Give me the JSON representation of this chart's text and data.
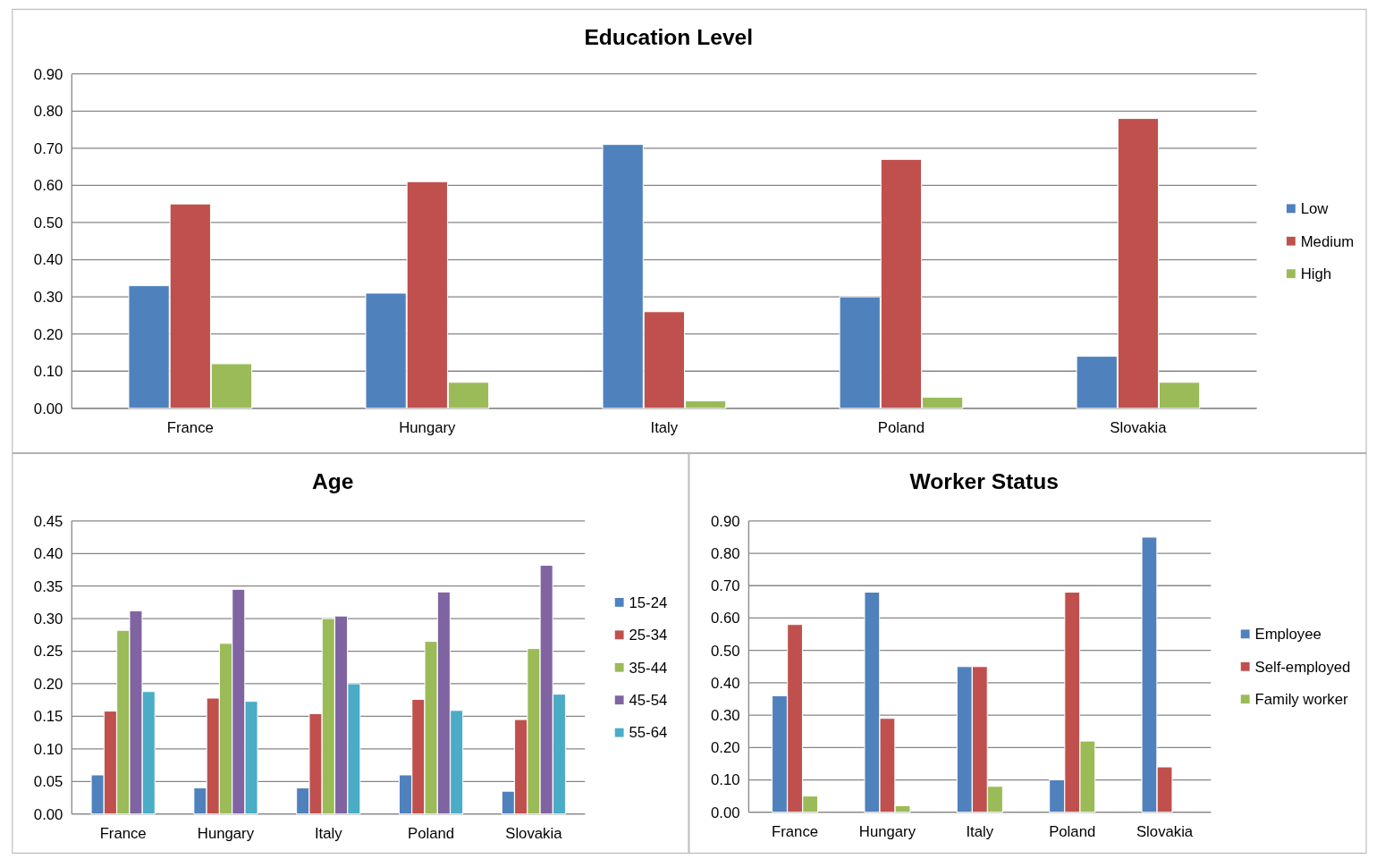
{
  "chart_data": [
    {
      "type": "bar",
      "title": "Education Level",
      "categories": [
        "France",
        "Hungary",
        "Italy",
        "Poland",
        "Slovakia"
      ],
      "series": [
        {
          "name": "Low",
          "color": "#4f81bd",
          "values": [
            0.33,
            0.31,
            0.71,
            0.3,
            0.14
          ]
        },
        {
          "name": "Medium",
          "color": "#c0504d",
          "values": [
            0.55,
            0.61,
            0.26,
            0.67,
            0.78
          ]
        },
        {
          "name": "High",
          "color": "#9bbb59",
          "values": [
            0.12,
            0.07,
            0.02,
            0.03,
            0.07
          ]
        }
      ],
      "ylim": [
        0,
        0.9
      ],
      "yticks": [
        {
          "value": 0,
          "label": "0.00"
        },
        {
          "value": 0.1,
          "label": "0.10"
        },
        {
          "value": 0.2,
          "label": "0.20"
        },
        {
          "value": 0.3,
          "label": "0.30"
        },
        {
          "value": 0.4,
          "label": "0.40"
        },
        {
          "value": 0.5,
          "label": "0.50"
        },
        {
          "value": 0.6,
          "label": "0.60"
        },
        {
          "value": 0.7,
          "label": "0.70"
        },
        {
          "value": 0.8,
          "label": "0.80"
        },
        {
          "value": 0.9,
          "label": "0.90"
        }
      ],
      "grid": "y",
      "legend": "right"
    },
    {
      "type": "bar",
      "title": "Age",
      "categories": [
        "France",
        "Hungary",
        "Italy",
        "Poland",
        "Slovakia"
      ],
      "series": [
        {
          "name": "15-24",
          "color": "#4f81bd",
          "values": [
            0.06,
            0.04,
            0.04,
            0.06,
            0.035
          ]
        },
        {
          "name": "25-34",
          "color": "#c0504d",
          "values": [
            0.158,
            0.178,
            0.154,
            0.176,
            0.145
          ]
        },
        {
          "name": "35-44",
          "color": "#9bbb59",
          "values": [
            0.282,
            0.262,
            0.3,
            0.265,
            0.254
          ]
        },
        {
          "name": "45-54",
          "color": "#8064a2",
          "values": [
            0.312,
            0.345,
            0.304,
            0.341,
            0.382
          ]
        },
        {
          "name": "55-64",
          "color": "#4bacc6",
          "values": [
            0.188,
            0.173,
            0.2,
            0.159,
            0.184
          ]
        }
      ],
      "ylim": [
        0,
        0.45
      ],
      "yticks": [
        {
          "value": 0,
          "label": "0.00"
        },
        {
          "value": 0.05,
          "label": "0.05"
        },
        {
          "value": 0.1,
          "label": "0.10"
        },
        {
          "value": 0.15,
          "label": "0.15"
        },
        {
          "value": 0.2,
          "label": "0.20"
        },
        {
          "value": 0.25,
          "label": "0.25"
        },
        {
          "value": 0.3,
          "label": "0.30"
        },
        {
          "value": 0.35,
          "label": "0.35"
        },
        {
          "value": 0.4,
          "label": "0.40"
        },
        {
          "value": 0.45,
          "label": "0.45"
        }
      ],
      "grid": "y",
      "legend": "right"
    },
    {
      "type": "bar",
      "title": "Worker Status",
      "categories": [
        "France",
        "Hungary",
        "Italy",
        "Poland",
        "Slovakia"
      ],
      "series": [
        {
          "name": "Employee",
          "color": "#4f81bd",
          "values": [
            0.36,
            0.68,
            0.45,
            0.1,
            0.85
          ]
        },
        {
          "name": "Self-employed",
          "color": "#c0504d",
          "values": [
            0.58,
            0.29,
            0.45,
            0.68,
            0.14
          ]
        },
        {
          "name": "Family worker",
          "color": "#9bbb59",
          "values": [
            0.05,
            0.02,
            0.08,
            0.22,
            0
          ]
        }
      ],
      "ylim": [
        0,
        0.9
      ],
      "yticks": [
        {
          "value": 0,
          "label": "0.00"
        },
        {
          "value": 0.1,
          "label": "0.10"
        },
        {
          "value": 0.2,
          "label": "0.20"
        },
        {
          "value": 0.3,
          "label": "0.30"
        },
        {
          "value": 0.4,
          "label": "0.40"
        },
        {
          "value": 0.5,
          "label": "0.50"
        },
        {
          "value": 0.6,
          "label": "0.60"
        },
        {
          "value": 0.7,
          "label": "0.70"
        },
        {
          "value": 0.8,
          "label": "0.80"
        },
        {
          "value": 0.9,
          "label": "0.90"
        }
      ],
      "grid": "y",
      "legend": "right"
    }
  ]
}
